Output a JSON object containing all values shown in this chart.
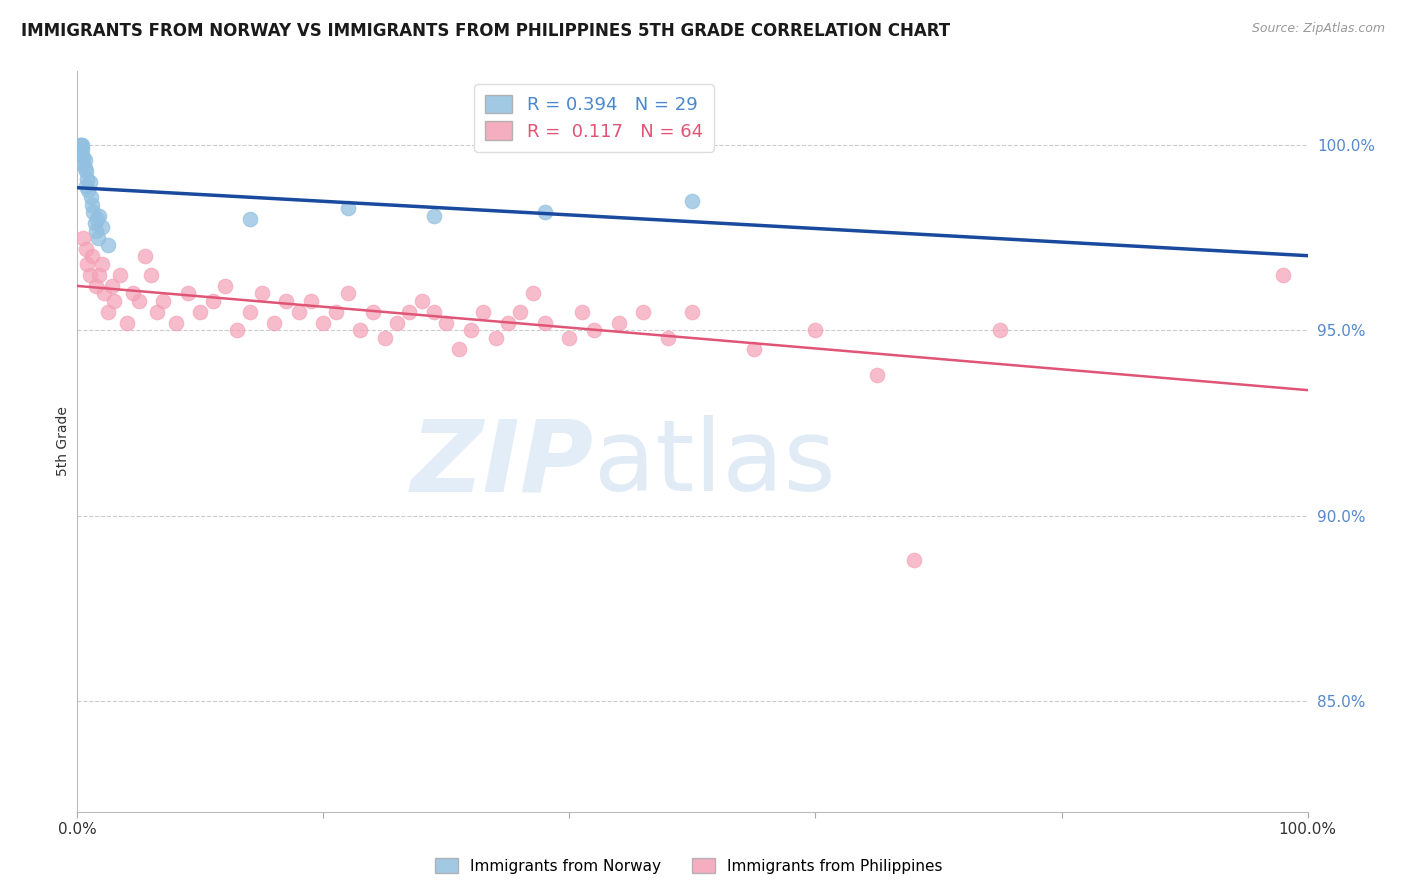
{
  "title": "IMMIGRANTS FROM NORWAY VS IMMIGRANTS FROM PHILIPPINES 5TH GRADE CORRELATION CHART",
  "source": "Source: ZipAtlas.com",
  "ylabel": "5th Grade",
  "xmin": 0.0,
  "xmax": 100.0,
  "ymin": 82.0,
  "ymax": 102.0,
  "norway_color": "#92c0e0",
  "philippines_color": "#f4a0b5",
  "norway_line_color": "#1a4a9e",
  "philippines_line_color": "#e05575",
  "legend_label1": "Immigrants from Norway",
  "legend_label2": "Immigrants from Philippines",
  "norway_R": 0.394,
  "norway_N": 29,
  "philippines_R": 0.117,
  "philippines_N": 64,
  "norway_x": [
    0.2,
    0.3,
    0.3,
    0.4,
    0.4,
    0.5,
    0.5,
    0.6,
    0.6,
    0.7,
    0.7,
    0.8,
    0.9,
    1.0,
    1.1,
    1.2,
    1.3,
    1.4,
    1.5,
    1.6,
    1.7,
    1.8,
    2.0,
    2.5,
    14.0,
    22.0,
    29.0,
    38.0,
    50.0
  ],
  "norway_y": [
    100.0,
    100.0,
    99.8,
    99.9,
    100.0,
    99.5,
    99.7,
    99.4,
    99.6,
    99.3,
    98.9,
    99.1,
    98.8,
    99.0,
    98.6,
    98.4,
    98.2,
    97.9,
    97.7,
    98.0,
    97.5,
    98.1,
    97.8,
    97.3,
    98.0,
    98.3,
    98.1,
    98.2,
    98.5
  ],
  "philippines_x": [
    0.5,
    0.7,
    0.8,
    1.0,
    1.2,
    1.5,
    1.8,
    2.0,
    2.2,
    2.5,
    2.8,
    3.0,
    3.5,
    4.0,
    4.5,
    5.0,
    5.5,
    6.0,
    6.5,
    7.0,
    8.0,
    9.0,
    10.0,
    11.0,
    12.0,
    13.0,
    14.0,
    15.0,
    16.0,
    17.0,
    18.0,
    19.0,
    20.0,
    21.0,
    22.0,
    23.0,
    24.0,
    25.0,
    26.0,
    27.0,
    28.0,
    29.0,
    30.0,
    31.0,
    32.0,
    33.0,
    34.0,
    35.0,
    36.0,
    37.0,
    38.0,
    40.0,
    41.0,
    42.0,
    44.0,
    46.0,
    48.0,
    50.0,
    55.0,
    60.0,
    65.0,
    68.0,
    75.0,
    98.0
  ],
  "philippines_y": [
    97.5,
    97.2,
    96.8,
    96.5,
    97.0,
    96.2,
    96.5,
    96.8,
    96.0,
    95.5,
    96.2,
    95.8,
    96.5,
    95.2,
    96.0,
    95.8,
    97.0,
    96.5,
    95.5,
    95.8,
    95.2,
    96.0,
    95.5,
    95.8,
    96.2,
    95.0,
    95.5,
    96.0,
    95.2,
    95.8,
    95.5,
    95.8,
    95.2,
    95.5,
    96.0,
    95.0,
    95.5,
    94.8,
    95.2,
    95.5,
    95.8,
    95.5,
    95.2,
    94.5,
    95.0,
    95.5,
    94.8,
    95.2,
    95.5,
    96.0,
    95.2,
    94.8,
    95.5,
    95.0,
    95.2,
    95.5,
    94.8,
    95.5,
    94.5,
    95.0,
    93.8,
    88.8,
    95.0,
    96.5
  ],
  "watermark_zip": "ZIP",
  "watermark_atlas": "atlas",
  "background_color": "#ffffff",
  "grid_color": "#cccccc",
  "yticks_right": [
    85.0,
    90.0,
    95.0,
    100.0
  ],
  "ytick_right_labels": [
    "85.0%",
    "90.0%",
    "95.0%",
    "100.0%"
  ]
}
